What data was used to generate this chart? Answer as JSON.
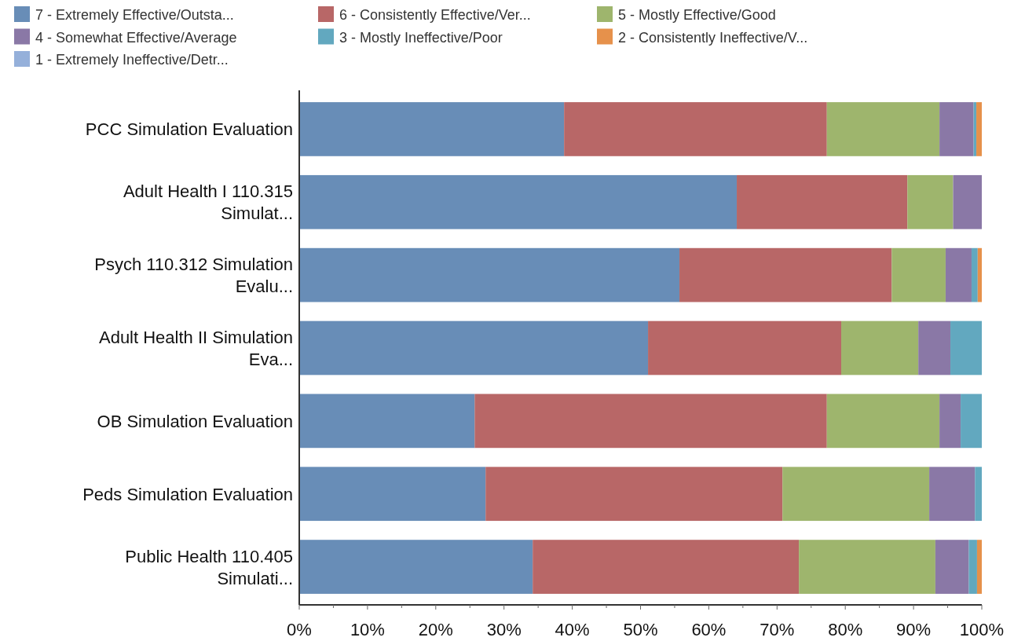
{
  "chart_data": {
    "type": "bar",
    "orientation": "horizontal",
    "stacked": true,
    "legend": "top left",
    "categories": [
      "PCC Simulation Evaluation",
      "Adult Health I 110.315 Simulat...",
      "Psych 110.312 Simulation Evalu...",
      "Adult Health II Simulation Eva...",
      "OB Simulation Evaluation",
      "Peds Simulation Evaluation",
      "Public Health 110.405 Simulati..."
    ],
    "series": [
      {
        "name": "7 - Extremely Effective/Outsta...",
        "color": "#688db7",
        "values": [
          38.8,
          64.1,
          55.7,
          51.1,
          25.7,
          27.3,
          34.2
        ]
      },
      {
        "name": "6 - Consistently Effective/Ver...",
        "color": "#b86767",
        "values": [
          38.5,
          25.0,
          31.1,
          28.3,
          51.6,
          43.5,
          39.0
        ]
      },
      {
        "name": "5 - Mostly Effective/Good",
        "color": "#9eb56d",
        "values": [
          16.5,
          6.7,
          7.9,
          11.3,
          16.5,
          21.5,
          20.0
        ]
      },
      {
        "name": "4 - Somewhat Effective/Average",
        "color": "#8a78a6",
        "values": [
          5.0,
          4.2,
          3.8,
          4.7,
          3.1,
          6.7,
          4.9
        ]
      },
      {
        "name": "3 - Mostly Ineffective/Poor",
        "color": "#62a8bf",
        "values": [
          0.4,
          0,
          0.9,
          4.6,
          3.1,
          1.0,
          1.2
        ]
      },
      {
        "name": "2 - Consistently Ineffective/V...",
        "color": "#e6914b",
        "values": [
          0.8,
          0,
          0.6,
          0,
          0,
          0,
          0.7
        ]
      },
      {
        "name": "1 - Extremely Ineffective/Detr...",
        "color": "#95b0da",
        "values": [
          0,
          0,
          0,
          0,
          0,
          0,
          0
        ]
      }
    ],
    "xlim": [
      0,
      100
    ],
    "xticks": [
      {
        "value": 0,
        "label": "0%"
      },
      {
        "value": 5,
        "label": null
      },
      {
        "value": 10,
        "label": "10%"
      },
      {
        "value": 15,
        "label": null
      },
      {
        "value": 20,
        "label": "20%"
      },
      {
        "value": 25,
        "label": null
      },
      {
        "value": 30,
        "label": "30%"
      },
      {
        "value": 35,
        "label": null
      },
      {
        "value": 40,
        "label": "40%"
      },
      {
        "value": 45,
        "label": null
      },
      {
        "value": 50,
        "label": "50%"
      },
      {
        "value": 55,
        "label": null
      },
      {
        "value": 60,
        "label": "60%"
      },
      {
        "value": 65,
        "label": null
      },
      {
        "value": 70,
        "label": "70%"
      },
      {
        "value": 75,
        "label": null
      },
      {
        "value": 80,
        "label": "80%"
      },
      {
        "value": 85,
        "label": null
      },
      {
        "value": 90,
        "label": "90%"
      },
      {
        "value": 95,
        "label": null
      },
      {
        "value": 100,
        "label": "100%"
      }
    ]
  }
}
